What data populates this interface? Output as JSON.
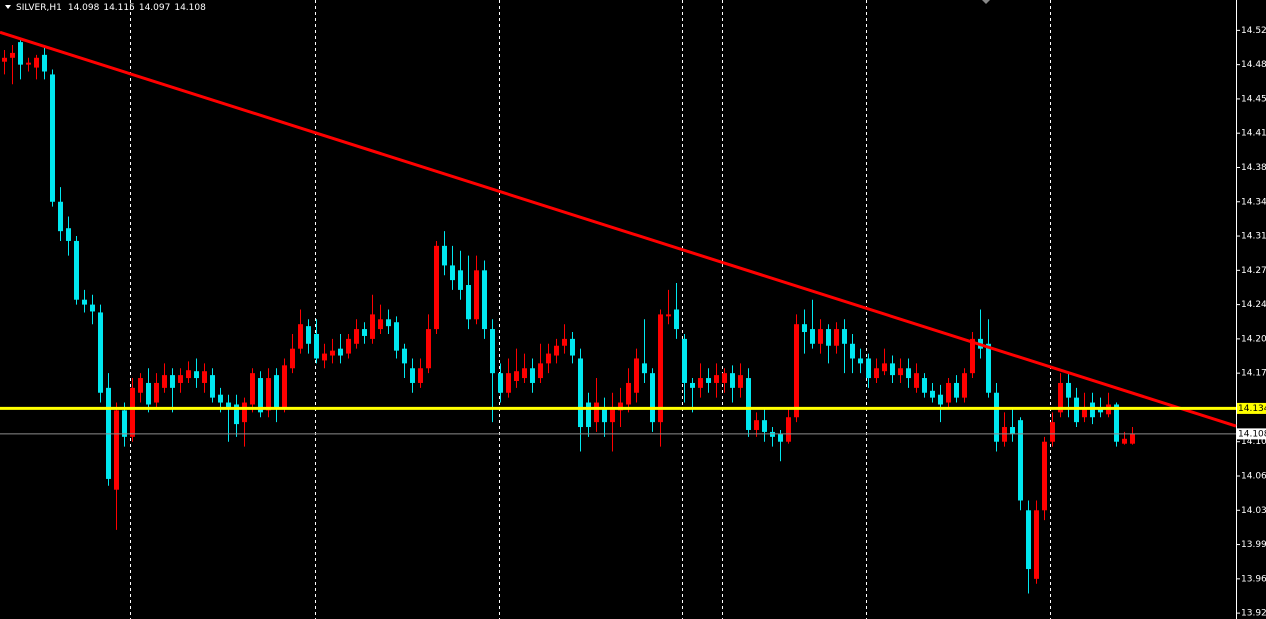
{
  "chart_data": {
    "type": "candlestick",
    "symbol": "SILVER,H1",
    "header": [
      14.098,
      14.115,
      14.097,
      14.108
    ],
    "up_color": "#ff0000",
    "down_color": "#00e8f0",
    "background": "#000000",
    "ylim": [
      13.919,
      14.551
    ],
    "yticks": [
      {
        "value": 14.52,
        "label": "14.520"
      },
      {
        "value": 14.485,
        "label": "14.485"
      },
      {
        "value": 14.45,
        "label": "14.450"
      },
      {
        "value": 14.415,
        "label": "14.415"
      },
      {
        "value": 14.38,
        "label": "14.380"
      },
      {
        "value": 14.345,
        "label": "14.345"
      },
      {
        "value": 14.31,
        "label": "14.310"
      },
      {
        "value": 14.275,
        "label": "14.275"
      },
      {
        "value": 14.24,
        "label": "14.240"
      },
      {
        "value": 14.205,
        "label": "14.205"
      },
      {
        "value": 14.17,
        "label": "14.170"
      },
      {
        "value": 14.135,
        "label": "14.135"
      },
      {
        "value": 14.1,
        "label": "14.100"
      },
      {
        "value": 14.065,
        "label": "14.065"
      },
      {
        "value": 14.03,
        "label": "14.030"
      },
      {
        "value": 13.995,
        "label": "13.995"
      },
      {
        "value": 13.96,
        "label": "13.960"
      },
      {
        "value": 13.925,
        "label": "13.925"
      }
    ],
    "hlines": [
      {
        "value": 14.134,
        "color": "#ffff00",
        "label_bg": "#ffff00"
      },
      {
        "value": 14.108,
        "color": "#8c8c8c",
        "label_bg": "#ffffff"
      }
    ],
    "trendline": {
      "color": "#ff0000",
      "values": [
        14.518,
        14.116
      ]
    },
    "open": [
      14.488,
      14.492,
      14.508,
      14.485,
      14.482,
      14.495,
      14.475,
      14.345,
      14.318,
      14.305,
      14.245,
      14.24,
      14.232,
      14.155,
      14.051,
      14.132,
      14.105,
      14.15,
      14.16,
      14.14,
      14.155,
      14.168,
      14.16,
      14.165,
      14.172,
      14.16,
      14.168,
      14.148,
      14.14,
      14.138,
      14.12,
      14.138,
      14.165,
      14.132,
      14.168,
      14.135,
      14.175,
      14.195,
      14.218,
      14.21,
      14.183,
      14.188,
      14.195,
      14.19,
      14.2,
      14.215,
      14.205,
      14.215,
      14.225,
      14.222,
      14.195,
      14.175,
      14.16,
      14.175,
      14.215,
      14.3,
      14.28,
      14.275,
      14.26,
      14.225,
      14.275,
      14.215,
      14.17,
      14.15,
      14.162,
      14.165,
      14.175,
      14.165,
      14.18,
      14.188,
      14.198,
      14.205,
      14.185,
      14.14,
      14.12,
      14.135,
      14.12,
      14.132,
      14.138,
      14.15,
      14.18,
      14.17,
      14.12,
      14.228,
      14.235,
      14.205,
      14.16,
      14.155,
      14.165,
      14.16,
      14.16,
      14.17,
      14.155,
      14.165,
      14.112,
      14.122,
      14.11,
      14.108,
      14.1,
      14.125,
      14.22,
      14.215,
      14.2,
      14.215,
      14.198,
      14.215,
      14.2,
      14.185,
      14.185,
      14.165,
      14.172,
      14.18,
      14.168,
      14.175,
      14.155,
      14.165,
      14.152,
      14.148,
      14.14,
      14.16,
      14.145,
      14.17,
      14.205,
      14.2,
      14.15,
      14.1,
      14.115,
      14.122,
      14.03,
      13.96,
      14.03,
      14.1,
      14.13,
      14.16,
      14.145,
      14.125,
      14.14,
      14.135,
      14.128,
      14.138,
      14.098,
      14.098
    ],
    "high": [
      14.5,
      14.505,
      14.512,
      14.492,
      14.495,
      14.505,
      14.48,
      14.36,
      14.33,
      14.31,
      14.255,
      14.25,
      14.24,
      14.17,
      14.14,
      14.14,
      14.165,
      14.17,
      14.175,
      14.17,
      14.18,
      14.175,
      14.175,
      14.182,
      14.185,
      14.18,
      14.175,
      14.155,
      14.148,
      14.148,
      14.145,
      14.175,
      14.172,
      14.175,
      14.175,
      14.185,
      14.21,
      14.235,
      14.225,
      14.225,
      14.2,
      14.205,
      14.21,
      14.21,
      14.225,
      14.222,
      14.25,
      14.24,
      14.235,
      14.228,
      14.2,
      14.185,
      14.185,
      14.23,
      14.305,
      14.315,
      14.3,
      14.295,
      14.29,
      14.29,
      14.285,
      14.225,
      14.18,
      14.185,
      14.195,
      14.19,
      14.185,
      14.2,
      14.2,
      14.205,
      14.22,
      14.212,
      14.195,
      14.15,
      14.165,
      14.145,
      14.15,
      14.155,
      14.175,
      14.195,
      14.225,
      14.175,
      14.235,
      14.255,
      14.262,
      14.21,
      14.165,
      14.18,
      14.175,
      14.18,
      14.175,
      14.178,
      14.18,
      14.175,
      14.13,
      14.135,
      14.115,
      14.112,
      14.135,
      14.23,
      14.235,
      14.245,
      14.225,
      14.22,
      14.222,
      14.225,
      14.21,
      14.195,
      14.19,
      14.185,
      14.195,
      14.188,
      14.185,
      14.185,
      14.18,
      14.17,
      14.16,
      14.158,
      14.165,
      14.168,
      14.175,
      14.212,
      14.235,
      14.225,
      14.16,
      14.13,
      14.135,
      14.125,
      14.04,
      14.04,
      14.105,
      14.13,
      14.17,
      14.17,
      14.155,
      14.15,
      14.15,
      14.145,
      14.15,
      14.14,
      14.11,
      14.115
    ],
    "low": [
      14.475,
      14.465,
      14.47,
      14.478,
      14.47,
      14.47,
      14.34,
      14.305,
      14.29,
      14.24,
      14.232,
      14.22,
      14.14,
      14.055,
      14.01,
      14.095,
      14.1,
      14.14,
      14.13,
      14.135,
      14.15,
      14.13,
      14.15,
      14.16,
      14.155,
      14.15,
      14.14,
      14.13,
      14.1,
      14.105,
      14.095,
      14.13,
      14.125,
      14.125,
      14.12,
      14.13,
      14.17,
      14.19,
      14.19,
      14.18,
      14.175,
      14.18,
      14.18,
      14.185,
      14.195,
      14.2,
      14.2,
      14.21,
      14.21,
      14.185,
      14.165,
      14.15,
      14.155,
      14.17,
      14.21,
      14.27,
      14.255,
      14.245,
      14.215,
      14.22,
      14.205,
      14.12,
      14.14,
      14.145,
      14.155,
      14.16,
      14.15,
      14.16,
      14.17,
      14.18,
      14.19,
      14.18,
      14.09,
      14.105,
      14.11,
      14.105,
      14.09,
      14.115,
      14.13,
      14.14,
      14.16,
      14.11,
      14.095,
      14.22,
      14.205,
      14.14,
      14.13,
      14.145,
      14.15,
      14.145,
      14.15,
      14.14,
      14.145,
      14.105,
      14.105,
      14.1,
      14.095,
      14.08,
      14.098,
      14.12,
      14.19,
      14.195,
      14.19,
      14.18,
      14.19,
      14.17,
      14.17,
      14.17,
      14.155,
      14.16,
      14.168,
      14.16,
      14.16,
      14.155,
      14.15,
      14.145,
      14.14,
      14.12,
      14.135,
      14.14,
      14.14,
      14.165,
      14.185,
      14.145,
      14.09,
      14.095,
      14.1,
      14.03,
      13.945,
      13.955,
      14.02,
      14.095,
      14.125,
      14.125,
      14.115,
      14.12,
      14.118,
      14.125,
      14.125,
      14.095,
      14.097,
      14.097
    ],
    "close": [
      14.492,
      14.497,
      14.485,
      14.487,
      14.492,
      14.478,
      14.345,
      14.315,
      14.305,
      14.245,
      14.24,
      14.233,
      14.15,
      14.062,
      14.132,
      14.105,
      14.155,
      14.165,
      14.138,
      14.16,
      14.168,
      14.155,
      14.168,
      14.173,
      14.165,
      14.172,
      14.145,
      14.14,
      14.135,
      14.118,
      14.14,
      14.17,
      14.13,
      14.165,
      14.135,
      14.178,
      14.195,
      14.22,
      14.2,
      14.185,
      14.19,
      14.193,
      14.188,
      14.205,
      14.215,
      14.208,
      14.23,
      14.225,
      14.218,
      14.193,
      14.18,
      14.16,
      14.175,
      14.215,
      14.3,
      14.28,
      14.265,
      14.255,
      14.225,
      14.275,
      14.215,
      14.17,
      14.15,
      14.17,
      14.172,
      14.175,
      14.16,
      14.18,
      14.19,
      14.198,
      14.205,
      14.188,
      14.115,
      14.115,
      14.14,
      14.12,
      14.135,
      14.14,
      14.16,
      14.185,
      14.17,
      14.12,
      14.23,
      14.23,
      14.215,
      14.16,
      14.155,
      14.165,
      14.16,
      14.168,
      14.17,
      14.155,
      14.168,
      14.112,
      14.122,
      14.11,
      14.105,
      14.1,
      14.125,
      14.22,
      14.212,
      14.2,
      14.215,
      14.198,
      14.215,
      14.2,
      14.185,
      14.18,
      14.165,
      14.175,
      14.18,
      14.168,
      14.175,
      14.165,
      14.17,
      14.15,
      14.145,
      14.138,
      14.16,
      14.145,
      14.17,
      14.205,
      14.195,
      14.15,
      14.1,
      14.115,
      14.108,
      14.04,
      13.97,
      14.03,
      14.1,
      14.12,
      14.16,
      14.145,
      14.12,
      14.135,
      14.125,
      14.13,
      14.138,
      14.1,
      14.103,
      14.108
    ]
  }
}
